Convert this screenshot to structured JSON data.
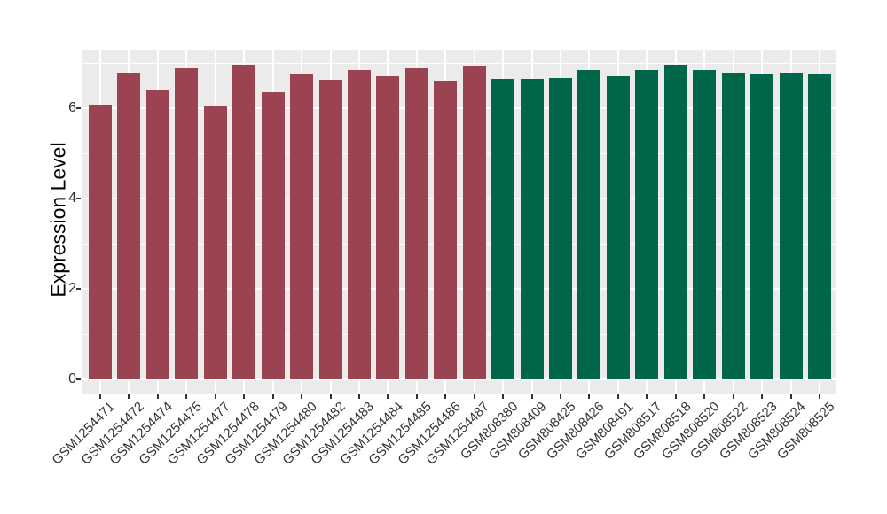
{
  "figure": {
    "background": "#FFFFFF",
    "panel_background": "#EBEBEB",
    "grid_color": "#FFFFFF",
    "axis_text_color": "#333333",
    "axis_title_color": "#000000",
    "tick_color": "#333333"
  },
  "chart_data": {
    "type": "bar",
    "title": "",
    "xlabel": "",
    "ylabel": "Expression Level",
    "ylim": [
      0,
      7.3
    ],
    "yticks": [
      0,
      2,
      4,
      6
    ],
    "minor_gridlines": [
      1,
      3,
      5,
      7
    ],
    "grid": true,
    "legend": "none",
    "categories": [
      "GSM1254471",
      "GSM1254472",
      "GSM1254474",
      "GSM1254475",
      "GSM1254477",
      "GSM1254478",
      "GSM1254479",
      "GSM1254480",
      "GSM1254482",
      "GSM1254483",
      "GSM1254484",
      "GSM1254485",
      "GSM1254486",
      "GSM1254487",
      "GSM808380",
      "GSM808409",
      "GSM808425",
      "GSM808426",
      "GSM808491",
      "GSM808517",
      "GSM808518",
      "GSM808520",
      "GSM808522",
      "GSM808523",
      "GSM808524",
      "GSM808525"
    ],
    "values": [
      6.06,
      6.78,
      6.4,
      6.88,
      6.03,
      6.96,
      6.36,
      6.77,
      6.63,
      6.84,
      6.7,
      6.89,
      6.61,
      6.95,
      6.65,
      6.65,
      6.66,
      6.84,
      6.71,
      6.84,
      6.96,
      6.85,
      6.79,
      6.77,
      6.78,
      6.74
    ],
    "groups": [
      "group1",
      "group1",
      "group1",
      "group1",
      "group1",
      "group1",
      "group1",
      "group1",
      "group1",
      "group1",
      "group1",
      "group1",
      "group1",
      "group1",
      "group2",
      "group2",
      "group2",
      "group2",
      "group2",
      "group2",
      "group2",
      "group2",
      "group2",
      "group2",
      "group2",
      "group2"
    ],
    "group_colors": {
      "group1": "#9C4351",
      "group2": "#00664A"
    }
  }
}
